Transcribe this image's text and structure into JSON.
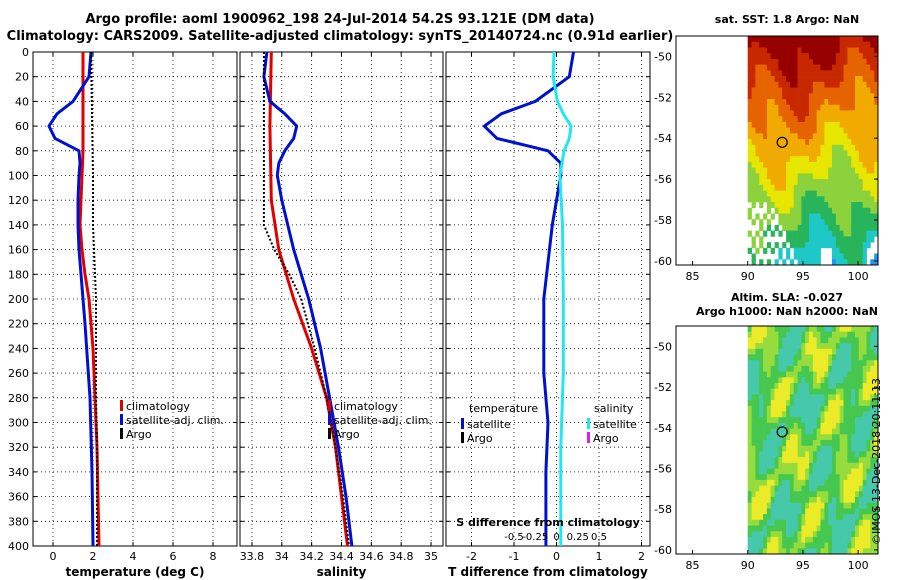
{
  "header": {
    "title_line1": "Argo profile: aoml 1900962_198 24-Jul-2014 54.2S 93.121E (DM data)",
    "title_line2": "Climatology: CARS2009. Satellite-adjusted climatology: synTS_20140724.nc (0.91d earlier)"
  },
  "colors": {
    "climatology": "#e00000",
    "satellite": "#0010d0",
    "argo": "#000000",
    "salinity_satellite": "#20e8f0",
    "salinity_argo": "#e020e0"
  },
  "chart_data": [
    {
      "type": "line",
      "name": "temperature-profile",
      "xlabel": "temperature (deg C)",
      "xlim": [
        -1,
        9.2
      ],
      "xticks": [
        0,
        2,
        4,
        6,
        8
      ],
      "ylim": [
        400,
        0
      ],
      "yticks": [
        0,
        20,
        40,
        60,
        80,
        100,
        120,
        140,
        160,
        180,
        200,
        220,
        240,
        260,
        280,
        300,
        320,
        340,
        360,
        380,
        400
      ],
      "grid": true,
      "legend_position": "bottom-right",
      "legend": [
        "climatology",
        "satellite-adj. clim.",
        "Argo"
      ],
      "series": [
        {
          "name": "climatology",
          "depth": [
            0,
            40,
            80,
            120,
            140,
            160,
            180,
            200,
            240,
            280,
            320,
            360,
            400
          ],
          "values": [
            1.5,
            1.5,
            1.5,
            1.4,
            1.35,
            1.45,
            1.6,
            1.8,
            2.0,
            2.1,
            2.2,
            2.25,
            2.3
          ]
        },
        {
          "name": "satellite-adj. clim.",
          "depth": [
            0,
            20,
            40,
            50,
            60,
            70,
            80,
            90,
            100,
            120,
            140,
            160,
            180,
            220,
            280,
            340,
            400
          ],
          "values": [
            1.9,
            1.8,
            1.0,
            0.2,
            -0.2,
            0.1,
            1.3,
            1.35,
            1.3,
            1.25,
            1.25,
            1.3,
            1.4,
            1.6,
            1.85,
            1.95,
            2.0
          ]
        },
        {
          "name": "Argo",
          "depth": [
            0,
            100,
            140,
            160,
            180,
            200,
            240,
            280,
            320,
            360,
            400
          ],
          "values": [
            1.9,
            2.0,
            2.0,
            2.05,
            2.1,
            2.15,
            2.15,
            2.15,
            2.2,
            2.2,
            2.2
          ]
        }
      ]
    },
    {
      "type": "line",
      "name": "salinity-profile",
      "xlabel": "salinity",
      "xlim": [
        33.72,
        35.08
      ],
      "xticks": [
        33.8,
        34,
        34.2,
        34.4,
        34.6,
        34.8,
        35
      ],
      "ylim": [
        400,
        0
      ],
      "grid": true,
      "legend_position": "bottom-right",
      "legend": [
        "climatology",
        "satellite-adj. clim.",
        "Argo"
      ],
      "series": [
        {
          "name": "climatology",
          "depth": [
            0,
            60,
            120,
            160,
            200,
            240,
            280,
            320,
            360,
            400
          ],
          "values": [
            33.93,
            33.92,
            33.93,
            33.98,
            34.08,
            34.2,
            34.3,
            34.36,
            34.4,
            34.44
          ]
        },
        {
          "name": "satellite-adj. clim.",
          "depth": [
            0,
            20,
            40,
            50,
            60,
            70,
            80,
            90,
            100,
            120,
            160,
            200,
            240,
            280,
            320,
            360,
            400
          ],
          "values": [
            33.9,
            33.88,
            33.92,
            34.02,
            34.1,
            34.08,
            34.02,
            33.98,
            33.97,
            34.0,
            34.08,
            34.18,
            34.26,
            34.32,
            34.38,
            34.43,
            34.47
          ]
        },
        {
          "name": "Argo",
          "depth": [
            0,
            100,
            140,
            160,
            180,
            200,
            240,
            280,
            320,
            360,
            400
          ],
          "values": [
            33.88,
            33.88,
            33.88,
            33.95,
            34.05,
            34.13,
            34.22,
            34.3,
            34.36,
            34.41,
            34.45
          ]
        }
      ]
    },
    {
      "type": "line",
      "name": "difference-profile",
      "xlabel": "T difference from climatology",
      "xlabel_top": "S difference from climatology",
      "xlim": [
        -2.6,
        2.2
      ],
      "xticks": [
        -2,
        -1,
        0,
        1,
        2
      ],
      "xticks_labels": [
        "-2",
        "-1",
        "0",
        "1",
        "2"
      ],
      "secondary_xticks": [
        -0.5,
        -0.25,
        0,
        0.25,
        0.5
      ],
      "secondary_xticks_labels": [
        "-0.5",
        "-0.25",
        "0",
        "0.25",
        "0.5"
      ],
      "ylim": [
        400,
        0
      ],
      "grid": true,
      "legend_temperature_title": "temperature",
      "legend_salinity_title": "salinity",
      "legend_temperature": [
        "satellite",
        "Argo"
      ],
      "legend_salinity": [
        "satellite",
        "Argo"
      ],
      "series": [
        {
          "name": "temperature satellite",
          "depth": [
            0,
            20,
            40,
            50,
            60,
            70,
            80,
            90,
            100,
            140,
            200,
            260,
            300,
            340,
            400
          ],
          "values": [
            0.4,
            0.3,
            -0.5,
            -1.3,
            -1.7,
            -1.4,
            -0.2,
            0.1,
            0.1,
            -0.1,
            -0.3,
            -0.3,
            -0.2,
            -0.25,
            -0.25
          ]
        },
        {
          "name": "salinity satellite",
          "depth": [
            0,
            20,
            40,
            50,
            60,
            70,
            80,
            100,
            140,
            200,
            260,
            320,
            400
          ],
          "values": [
            -0.03,
            -0.04,
            0.01,
            0.08,
            0.17,
            0.15,
            0.09,
            0.04,
            0.07,
            0.08,
            0.08,
            0.05,
            0.05
          ]
        }
      ]
    }
  ],
  "maps": {
    "sst_title": "sat. SST: 1.8 Argo: NaN",
    "sla_title_line1": "Altim. SLA: -0.027",
    "sla_title_line2": "Argo h1000: NaN h2000: NaN",
    "lon_ticks": [
      "85",
      "90",
      "95",
      "100"
    ],
    "lat_ticks": [
      "-50",
      "-52",
      "-54",
      "-56",
      "-58",
      "-60"
    ],
    "lon_values": [
      85,
      90,
      95,
      100
    ],
    "lat_values": [
      -50,
      -52,
      -54,
      -56,
      -58,
      -60
    ],
    "lon_range": [
      83.5,
      101.8
    ],
    "lat_range": [
      -49,
      -60.2
    ],
    "marker": {
      "lon": 93.121,
      "lat": -54.2
    }
  },
  "footer": {
    "credit": "©IMOS 13-Dec-2018 20:11:13"
  }
}
